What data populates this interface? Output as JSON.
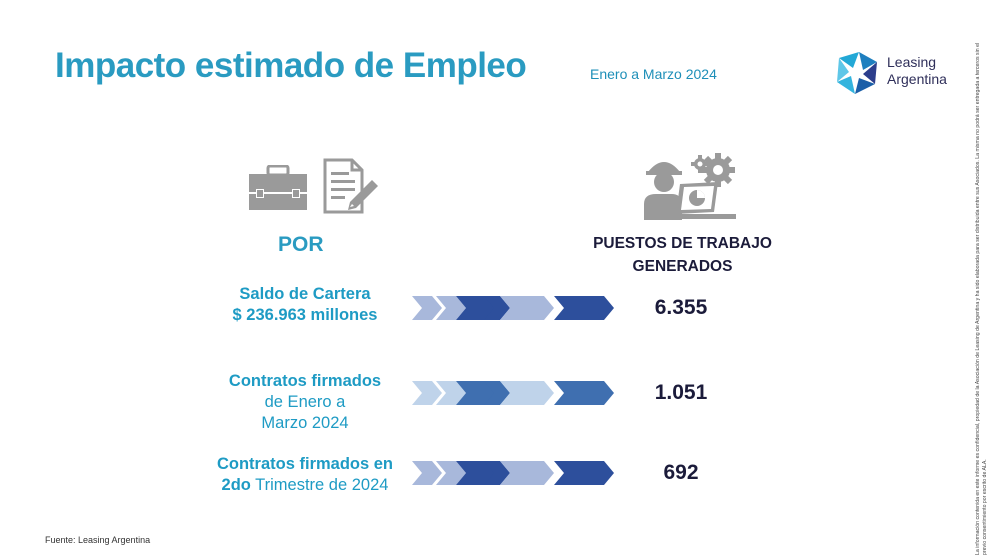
{
  "header": {
    "title": "Impacto estimado de Empleo",
    "period": "Enero a Marzo 2024"
  },
  "logo": {
    "line1": "Leasing",
    "line2": "Argentina"
  },
  "icons": [
    "briefcase-icon",
    "document-pen-icon",
    "worker-computer-gear-icon"
  ],
  "columns": {
    "left_header": "POR",
    "right_header_line1": "PUESTOS DE TRABAJO",
    "right_header_line2": "GENERADOS"
  },
  "rows": [
    {
      "line1": "Saldo de Cartera",
      "line2": "$ 236.963 millones",
      "value": "6.355",
      "arrow_style": "light-dark"
    },
    {
      "line1": "Contratos firmados",
      "line2": "de Enero a",
      "line3": "Marzo 2024",
      "value": "1.051",
      "arrow_style": "pale-mid"
    },
    {
      "line1": "Contratos firmados en",
      "line2_bold": "2do",
      "line2_rest": " Trimestre de 2024",
      "value": "692",
      "arrow_style": "light-dark"
    }
  ],
  "colors": {
    "accent": "#2a9bc1",
    "dark_text": "#1b1b3a",
    "icon_gray": "#9a9a9a"
  },
  "footer": {
    "source": "Fuente: Leasing Argentina",
    "disclaimer": "La información contenida en este informe es confidencial, propiedad de la Asociación de Leasing de Argentina y ha sido elaborada para ser distribuida entre sus Asociados. La misma no podrá ser entregada a terceros sin el previo consentimiento por escrito de ALA."
  }
}
